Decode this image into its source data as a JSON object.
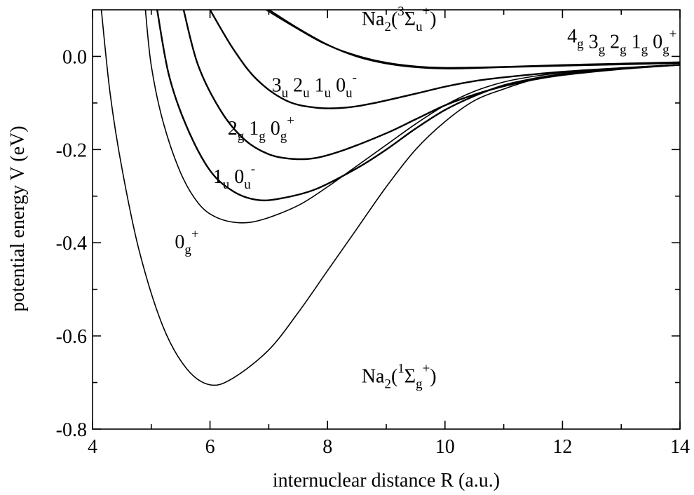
{
  "chart_data": {
    "type": "line",
    "title": "",
    "xlabel": "internuclear distance R  (a.u.)",
    "ylabel": "potential energy V  (eV)",
    "xlim": [
      4,
      14
    ],
    "ylim": [
      -0.8,
      0.1
    ],
    "x_ticks": [
      {
        "value": 4,
        "label": "4"
      },
      {
        "value": 6,
        "label": "6"
      },
      {
        "value": 8,
        "label": "8"
      },
      {
        "value": 10,
        "label": "10"
      },
      {
        "value": 12,
        "label": "12"
      },
      {
        "value": 14,
        "label": "14"
      }
    ],
    "x_minor_ticks": [
      5,
      7,
      9,
      11,
      13
    ],
    "y_ticks": [
      {
        "value": 0.0,
        "label": "0.0"
      },
      {
        "value": -0.2,
        "label": "-0.2"
      },
      {
        "value": -0.4,
        "label": "-0.4"
      },
      {
        "value": -0.6,
        "label": "-0.6"
      },
      {
        "value": -0.8,
        "label": "-0.8"
      }
    ],
    "y_minor_ticks": [
      -0.1,
      -0.3,
      -0.5,
      -0.7
    ],
    "grid": false,
    "series": [
      {
        "name": "Na2(1Σg+)",
        "points": [
          [
            4.15,
            0.1
          ],
          [
            4.3,
            -0.08
          ],
          [
            4.5,
            -0.24
          ],
          [
            4.8,
            -0.42
          ],
          [
            5.2,
            -0.58
          ],
          [
            5.6,
            -0.67
          ],
          [
            6.0,
            -0.705
          ],
          [
            6.4,
            -0.69
          ],
          [
            7.0,
            -0.63
          ],
          [
            7.5,
            -0.55
          ],
          [
            8.0,
            -0.46
          ],
          [
            8.5,
            -0.37
          ],
          [
            9.0,
            -0.28
          ],
          [
            9.5,
            -0.2
          ],
          [
            10.0,
            -0.14
          ],
          [
            10.5,
            -0.095
          ],
          [
            11.0,
            -0.07
          ],
          [
            11.5,
            -0.05
          ],
          [
            12.0,
            -0.04
          ],
          [
            13.0,
            -0.027
          ],
          [
            14.0,
            -0.018
          ]
        ]
      },
      {
        "name": "0g+",
        "points": [
          [
            4.9,
            0.1
          ],
          [
            5.0,
            -0.02
          ],
          [
            5.2,
            -0.14
          ],
          [
            5.5,
            -0.25
          ],
          [
            5.8,
            -0.315
          ],
          [
            6.1,
            -0.345
          ],
          [
            6.5,
            -0.357
          ],
          [
            6.9,
            -0.35
          ],
          [
            7.5,
            -0.32
          ],
          [
            8.0,
            -0.28
          ],
          [
            8.5,
            -0.235
          ],
          [
            9.0,
            -0.19
          ],
          [
            9.5,
            -0.145
          ],
          [
            10.0,
            -0.105
          ],
          [
            10.5,
            -0.075
          ],
          [
            11.0,
            -0.055
          ],
          [
            11.5,
            -0.043
          ],
          [
            12.0,
            -0.035
          ],
          [
            13.0,
            -0.025
          ],
          [
            14.0,
            -0.018
          ]
        ]
      },
      {
        "name": "1u 0u-",
        "points": [
          [
            5.1,
            0.1
          ],
          [
            5.3,
            -0.04
          ],
          [
            5.6,
            -0.15
          ],
          [
            6.0,
            -0.245
          ],
          [
            6.4,
            -0.29
          ],
          [
            6.8,
            -0.308
          ],
          [
            7.2,
            -0.305
          ],
          [
            7.8,
            -0.285
          ],
          [
            8.5,
            -0.24
          ],
          [
            9.0,
            -0.2
          ],
          [
            9.5,
            -0.155
          ],
          [
            10.0,
            -0.115
          ],
          [
            10.5,
            -0.085
          ],
          [
            11.0,
            -0.062
          ],
          [
            11.5,
            -0.048
          ],
          [
            12.0,
            -0.038
          ],
          [
            13.0,
            -0.026
          ],
          [
            14.0,
            -0.018
          ]
        ]
      },
      {
        "name": "2g 1g 0g+",
        "points": [
          [
            5.55,
            0.1
          ],
          [
            5.8,
            -0.02
          ],
          [
            6.2,
            -0.12
          ],
          [
            6.6,
            -0.18
          ],
          [
            7.0,
            -0.21
          ],
          [
            7.4,
            -0.22
          ],
          [
            7.8,
            -0.218
          ],
          [
            8.3,
            -0.2
          ],
          [
            9.0,
            -0.165
          ],
          [
            9.5,
            -0.135
          ],
          [
            10.0,
            -0.105
          ],
          [
            10.5,
            -0.082
          ],
          [
            11.0,
            -0.064
          ],
          [
            11.5,
            -0.05
          ],
          [
            12.0,
            -0.04
          ],
          [
            13.0,
            -0.027
          ],
          [
            14.0,
            -0.018
          ]
        ]
      },
      {
        "name": "3u 2u 1u 0u-",
        "points": [
          [
            6.0,
            0.1
          ],
          [
            6.4,
            0.015
          ],
          [
            6.8,
            -0.05
          ],
          [
            7.3,
            -0.095
          ],
          [
            7.8,
            -0.11
          ],
          [
            8.3,
            -0.11
          ],
          [
            8.8,
            -0.1
          ],
          [
            9.5,
            -0.08
          ],
          [
            10.0,
            -0.065
          ],
          [
            10.5,
            -0.053
          ],
          [
            11.0,
            -0.045
          ],
          [
            12.0,
            -0.033
          ],
          [
            13.0,
            -0.025
          ],
          [
            14.0,
            -0.018
          ]
        ]
      },
      {
        "name": "4g 3g 2g 1g 0g+",
        "points": [
          [
            7.0,
            0.1
          ],
          [
            7.5,
            0.06
          ],
          [
            8.0,
            0.025
          ],
          [
            8.5,
            0.0
          ],
          [
            9.0,
            -0.015
          ],
          [
            9.5,
            -0.023
          ],
          [
            10.0,
            -0.026
          ],
          [
            10.5,
            -0.025
          ],
          [
            11.0,
            -0.023
          ],
          [
            12.0,
            -0.02
          ],
          [
            13.0,
            -0.017
          ],
          [
            14.0,
            -0.014
          ]
        ]
      },
      {
        "name": "Na2(3Σu+)",
        "points": [
          [
            6.95,
            0.1
          ],
          [
            7.45,
            0.062
          ],
          [
            7.95,
            0.027
          ],
          [
            8.5,
            0.002
          ],
          [
            9.0,
            -0.013
          ],
          [
            9.5,
            -0.021
          ],
          [
            10.0,
            -0.024
          ],
          [
            11.0,
            -0.022
          ],
          [
            12.0,
            -0.018
          ],
          [
            13.0,
            -0.015
          ],
          [
            14.0,
            -0.012
          ]
        ]
      }
    ],
    "annotations": [
      {
        "base": "Na",
        "sub": "2",
        "rest": "(",
        "sup2": "3",
        "sym": "Σ",
        "sub2": "u",
        "sup": "+",
        "tail": ")",
        "x": 8.6,
        "y": 0.065
      },
      {
        "text": "4g 3g 2g 1g 0g+",
        "x": 12.0,
        "y": 0.03
      },
      {
        "text": "3u 2u 1u 0u-",
        "x": 8.3,
        "y": -0.075
      },
      {
        "text": "2g 1g 0g+",
        "x": 7.15,
        "y": -0.165
      },
      {
        "text": "1u 0u-",
        "x": 6.85,
        "y": -0.27
      },
      {
        "text": "0g+",
        "x": 6.1,
        "y": -0.415
      },
      {
        "text": "Na2(1Σg+)",
        "x": 8.6,
        "y": -0.705
      }
    ]
  }
}
